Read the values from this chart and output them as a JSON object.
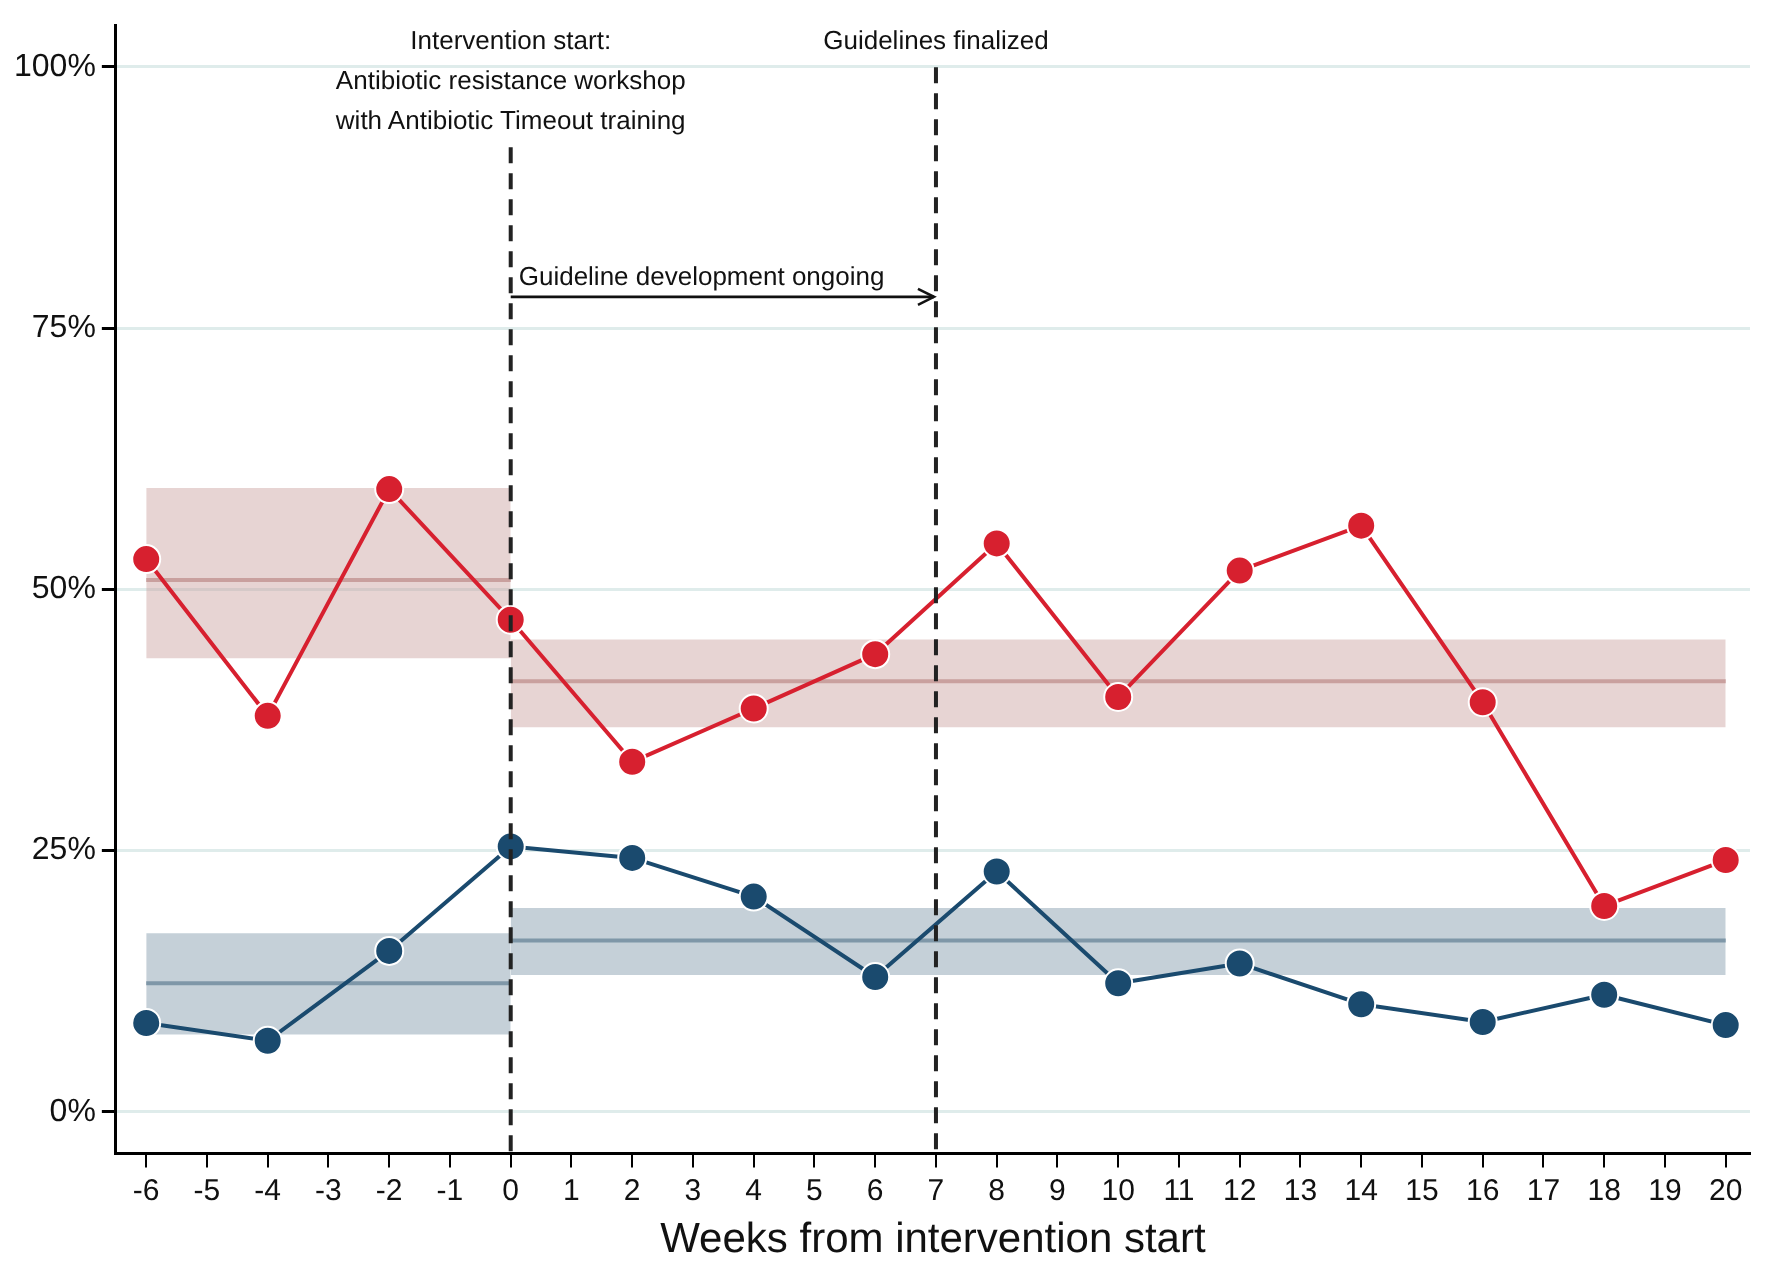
{
  "chart_data": {
    "type": "line",
    "xlabel": "Weeks from intervention start",
    "x": [
      -6,
      -4,
      -2,
      0,
      2,
      4,
      6,
      8,
      10,
      12,
      14,
      16,
      18,
      20
    ],
    "series": [
      {
        "type": "line",
        "color": "#c9a09e",
        "x": [
          -6,
          0
        ],
        "values": [
          50.9,
          50.9
        ],
        "lower": [
          43.4,
          43.4
        ],
        "upper": [
          59.7,
          59.7
        ],
        "marker": "none"
      },
      {
        "type": "line",
        "color": "#c9a09e",
        "x": [
          0,
          20
        ],
        "values": [
          41.2,
          41.2
        ],
        "lower": [
          36.8,
          36.8
        ],
        "upper": [
          45.2,
          45.2
        ],
        "marker": "none"
      },
      {
        "type": "line",
        "color": "#7f97a8",
        "x": [
          -6,
          0
        ],
        "values": [
          12.3,
          12.3
        ],
        "lower": [
          7.4,
          7.4
        ],
        "upper": [
          17.1,
          17.1
        ],
        "marker": "none"
      },
      {
        "type": "line",
        "color": "#7f97a8",
        "x": [
          0,
          20
        ],
        "values": [
          16.4,
          16.4
        ],
        "lower": [
          13.1,
          13.1
        ],
        "upper": [
          19.5,
          19.5
        ],
        "marker": "none"
      },
      {
        "color": "#d7202f",
        "values": [
          52.9,
          37.9,
          59.6,
          47.1,
          33.5,
          38.6,
          43.8,
          54.4,
          39.7,
          51.8,
          56.1,
          39.2,
          19.7,
          24.1
        ],
        "marker": "circle"
      },
      {
        "color": "#1a4a6e",
        "values": [
          8.5,
          6.8,
          15.4,
          25.4,
          24.3,
          20.6,
          12.9,
          23.0,
          12.3,
          14.2,
          10.3,
          8.6,
          11.2,
          8.3
        ],
        "marker": "circle"
      }
    ],
    "xlim": [
      -6.5,
      20.4
    ],
    "xticks": [
      -6,
      -5,
      -4,
      -3,
      -2,
      -1,
      0,
      1,
      2,
      3,
      4,
      5,
      6,
      7,
      8,
      9,
      10,
      11,
      12,
      13,
      14,
      15,
      16,
      17,
      18,
      19,
      20
    ],
    "ylim": [
      -4,
      104
    ],
    "yticks": [
      {
        "value": 0,
        "label": "0%"
      },
      {
        "value": 25,
        "label": "25%"
      },
      {
        "value": 50,
        "label": "50%"
      },
      {
        "value": 75,
        "label": "75%"
      },
      {
        "value": 100,
        "label": "100%"
      }
    ],
    "ref_lines": [
      {
        "axis": "x",
        "value": 0,
        "label": "Intervention start:\nAntibiotic resistance workshop\nwith Antibiotic Timeout training",
        "line_style": "dashed",
        "color": "#222222"
      },
      {
        "axis": "x",
        "value": 7,
        "label": "Guidelines finalized",
        "line_style": "dashed",
        "color": "#222222"
      }
    ],
    "annotations": [
      {
        "text": "Guideline development ongoing",
        "x": 0,
        "y": 78
      }
    ],
    "grid": "y",
    "legend": false
  }
}
